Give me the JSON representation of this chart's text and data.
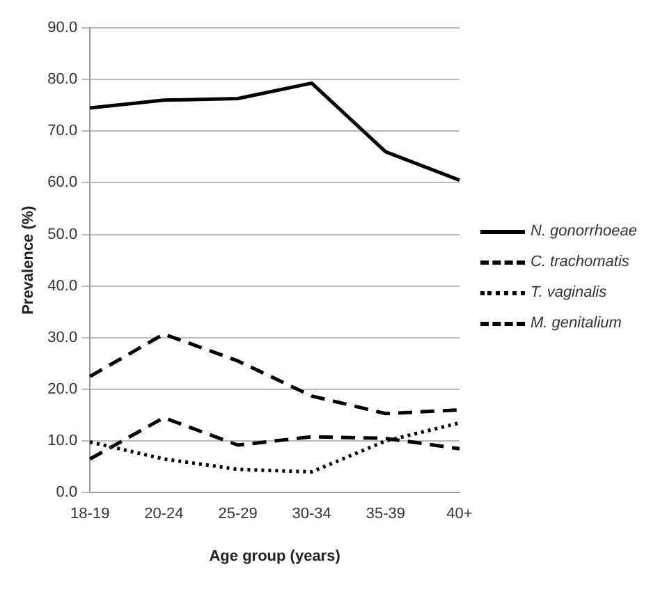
{
  "chart_data": {
    "type": "line",
    "xlabel": "Age group (years)",
    "ylabel": "Prevalence (%)",
    "categories": [
      "18-19",
      "20-24",
      "25-29",
      "30-34",
      "35-39",
      "40+"
    ],
    "series": [
      {
        "name": "N. gonorrhoeae",
        "color": "#000000",
        "line_style": "solid",
        "values": [
          74.5,
          76,
          76.3,
          79.3,
          66,
          60.5
        ]
      },
      {
        "name": "C. trachomatis",
        "color": "#000000",
        "line_style": "dashed",
        "values": [
          22.5,
          30.7,
          25.5,
          18.7,
          15.3,
          16
        ]
      },
      {
        "name": "T. vaginalis",
        "color": "#000000",
        "line_style": "dotted",
        "values": [
          9.8,
          6.5,
          4.5,
          4,
          10,
          13.5
        ]
      },
      {
        "name": "M. genitalium",
        "color": "#000000",
        "line_style": "dashed",
        "values": [
          6.5,
          14.5,
          9.2,
          10.8,
          10.5,
          8.5
        ]
      }
    ],
    "ylim": [
      0,
      90
    ],
    "yticks": [
      {
        "value": 0,
        "label": "0.0"
      },
      {
        "value": 10,
        "label": "10.0"
      },
      {
        "value": 20,
        "label": "20.0"
      },
      {
        "value": 30,
        "label": "30.0"
      },
      {
        "value": 40,
        "label": "40.0"
      },
      {
        "value": 50,
        "label": "50.0"
      },
      {
        "value": 60,
        "label": "60.0"
      },
      {
        "value": 70,
        "label": "70.0"
      },
      {
        "value": 80,
        "label": "80.0"
      },
      {
        "value": 90,
        "label": "90.0"
      }
    ],
    "grid": "y",
    "legend": "right",
    "marker": "none"
  }
}
